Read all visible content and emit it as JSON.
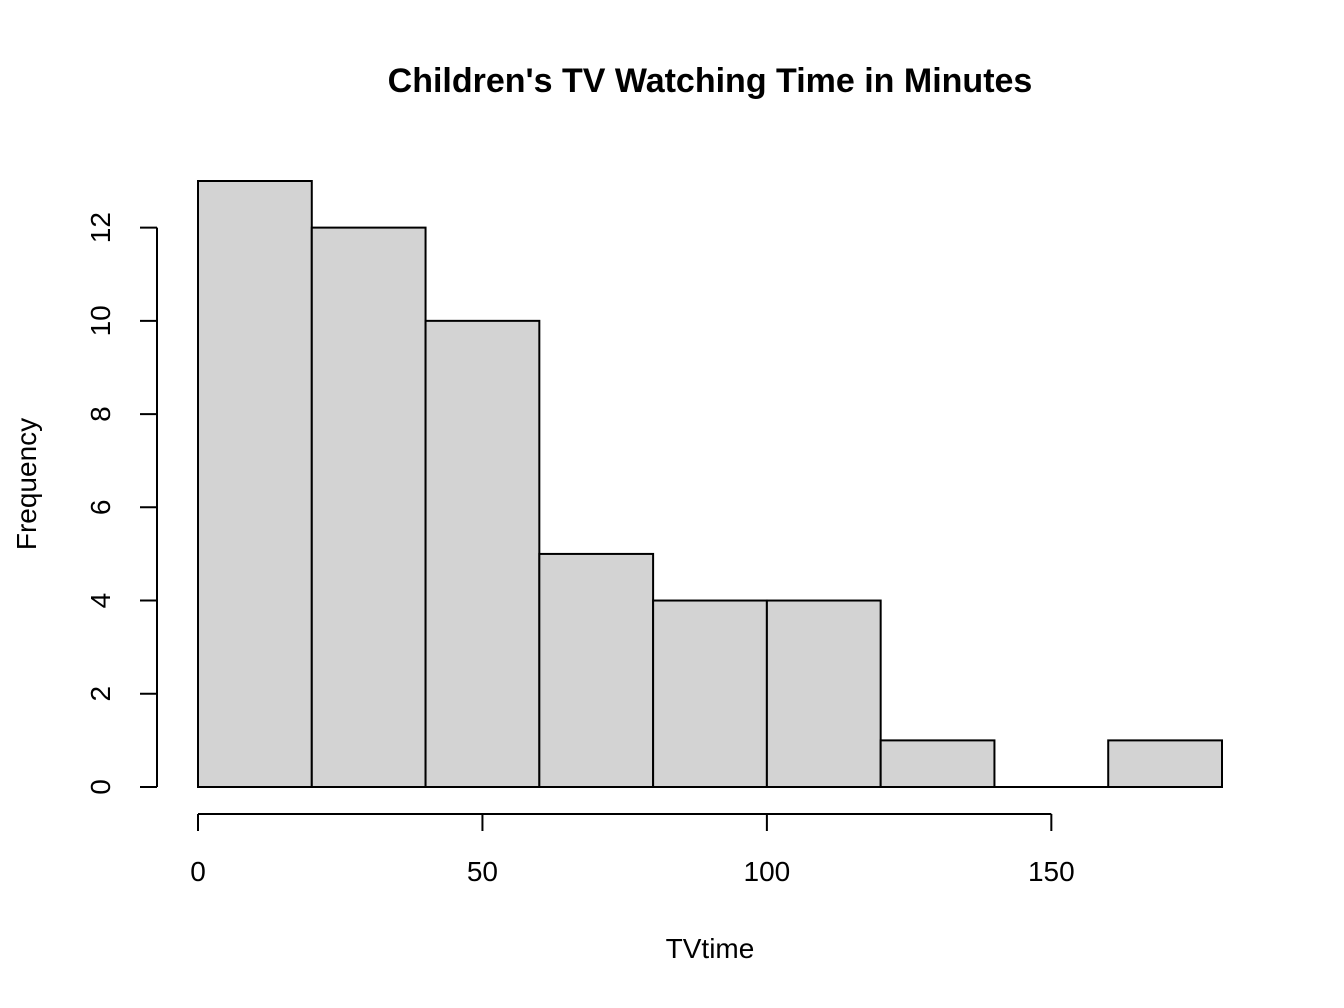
{
  "chart_data": {
    "type": "bar",
    "title": "Children's TV Watching Time in Minutes",
    "xlabel": "TVtime",
    "ylabel": "Frequency",
    "bins": [
      {
        "start": 0,
        "end": 20,
        "count": 13
      },
      {
        "start": 20,
        "end": 40,
        "count": 12
      },
      {
        "start": 40,
        "end": 60,
        "count": 10
      },
      {
        "start": 60,
        "end": 80,
        "count": 5
      },
      {
        "start": 80,
        "end": 100,
        "count": 4
      },
      {
        "start": 100,
        "end": 120,
        "count": 4
      },
      {
        "start": 120,
        "end": 140,
        "count": 1
      },
      {
        "start": 140,
        "end": 160,
        "count": 0
      },
      {
        "start": 160,
        "end": 180,
        "count": 1
      }
    ],
    "x_ticks": [
      "0",
      "50",
      "100",
      "150"
    ],
    "y_ticks": [
      "0",
      "2",
      "4",
      "6",
      "8",
      "10",
      "12"
    ],
    "xlim": [
      0,
      180
    ],
    "ylim": [
      0,
      13
    ],
    "grid": false,
    "bar_color": "#d3d3d3",
    "edge_color": "#000000"
  }
}
